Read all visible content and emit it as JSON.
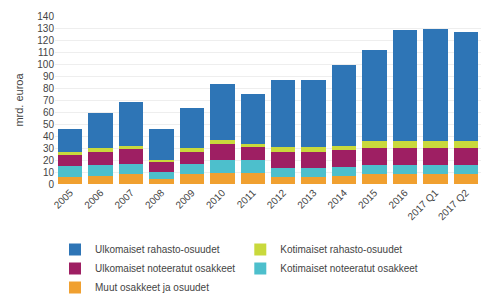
{
  "chart_data": {
    "type": "bar",
    "stacked": true,
    "ylabel": "mrd. euroa",
    "categories": [
      "2005",
      "2006",
      "2007",
      "2008",
      "2009",
      "2010",
      "2011",
      "2012",
      "2013",
      "2014",
      "2015",
      "2016",
      "2017 Q1",
      "2017 Q2"
    ],
    "series": [
      {
        "name": "Muut osakkeet ja osuudet",
        "color": "#F0A030",
        "values": [
          6,
          7,
          8,
          4,
          8,
          9,
          9,
          6,
          6,
          7,
          8,
          8,
          8,
          8
        ]
      },
      {
        "name": "Kotimaiset noteeratut osakkeet",
        "color": "#4DBFCC",
        "values": [
          9,
          9,
          9,
          6,
          9,
          11,
          11,
          7,
          7,
          7,
          8,
          8,
          8,
          8
        ]
      },
      {
        "name": "Ulkomaiset noteeratut osakkeet",
        "color": "#9E1F63",
        "values": [
          9,
          11,
          12,
          8,
          10,
          13,
          11,
          14,
          14,
          14,
          14,
          14,
          14,
          14
        ]
      },
      {
        "name": "Kotimaiset rahasto-osuudet",
        "color": "#C9D93C",
        "values": [
          3,
          3,
          3,
          2,
          3,
          4,
          2,
          4,
          4,
          4,
          6,
          6,
          6,
          6
        ]
      },
      {
        "name": "Ulkomaiset rahasto-osuudet",
        "color": "#2E75B6",
        "values": [
          19,
          29,
          36,
          26,
          33,
          46,
          42,
          56,
          56,
          67,
          76,
          92,
          93,
          91
        ]
      }
    ],
    "ylim": [
      0,
      140
    ],
    "yticks": [
      0,
      10,
      20,
      30,
      40,
      50,
      60,
      70,
      80,
      90,
      100,
      110,
      120,
      130,
      140
    ],
    "grid": true,
    "legend": "bottom"
  }
}
